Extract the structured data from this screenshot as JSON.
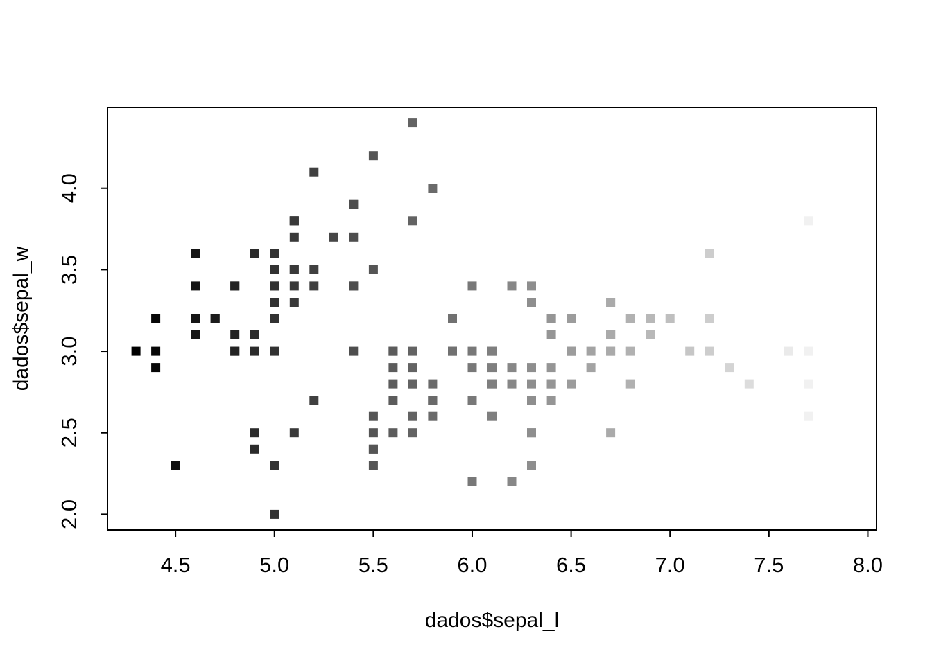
{
  "figure": {
    "background_color": "#ffffff",
    "foreground_color": "#000000"
  },
  "chart_data": {
    "type": "scatter",
    "title": "",
    "xlabel": "dados$sepal_l",
    "ylabel": "dados$sepal_w",
    "point_shape": "filled-square",
    "grid": false,
    "legend": "none",
    "xlim": [
      4.156,
      8.044
    ],
    "ylim": [
      1.904,
      4.496
    ],
    "x_ticks": {
      "values": [
        4.5,
        5.0,
        5.5,
        6.0,
        6.5,
        7.0,
        7.5,
        8.0
      ],
      "labels": [
        "4.5",
        "5.0",
        "5.5",
        "6.0",
        "6.5",
        "7.0",
        "7.5",
        "8.0"
      ]
    },
    "y_ticks": {
      "values": [
        2.0,
        2.5,
        3.0,
        3.5,
        4.0
      ],
      "labels": [
        "2.0",
        "2.5",
        "3.0",
        "3.5",
        "4.0"
      ]
    },
    "color_mapping": {
      "by": "x",
      "domain": [
        4.3,
        7.9
      ],
      "min_color": "#000000",
      "max_color": "#ffffff"
    },
    "x": [
      5.1,
      4.9,
      4.7,
      4.6,
      5.0,
      5.4,
      4.6,
      5.0,
      4.4,
      4.9,
      5.4,
      4.8,
      4.8,
      4.3,
      5.8,
      5.7,
      5.4,
      5.1,
      5.7,
      5.1,
      5.4,
      5.1,
      4.6,
      5.1,
      4.8,
      5.0,
      5.0,
      5.2,
      5.2,
      4.7,
      4.8,
      5.4,
      5.2,
      5.5,
      4.9,
      5.0,
      5.5,
      4.9,
      4.4,
      5.1,
      5.0,
      4.5,
      4.4,
      5.0,
      5.1,
      4.8,
      5.1,
      4.6,
      5.3,
      5.0,
      7.0,
      6.4,
      6.9,
      5.5,
      6.5,
      5.7,
      6.3,
      4.9,
      6.6,
      5.2,
      5.0,
      5.9,
      6.0,
      6.1,
      5.6,
      6.7,
      5.6,
      5.8,
      6.2,
      5.6,
      5.9,
      6.1,
      6.3,
      6.1,
      6.4,
      6.6,
      6.8,
      6.7,
      6.0,
      5.7,
      5.5,
      5.5,
      5.8,
      6.0,
      5.4,
      6.0,
      6.7,
      6.3,
      5.6,
      5.5,
      5.5,
      6.1,
      5.8,
      5.0,
      5.6,
      5.7,
      5.7,
      6.2,
      5.1,
      5.7,
      6.3,
      5.8,
      7.1,
      6.3,
      6.5,
      7.6,
      4.9,
      7.3,
      6.7,
      7.2,
      6.5,
      6.4,
      6.8,
      5.7,
      5.8,
      6.4,
      6.5,
      7.7,
      7.7,
      6.0,
      6.9,
      5.6,
      7.7,
      6.3,
      6.7,
      7.2,
      6.2,
      6.1,
      6.4,
      7.2,
      7.4,
      7.9,
      6.4,
      6.3,
      6.1,
      7.7,
      6.3,
      6.4,
      6.0,
      6.9,
      6.7,
      6.9,
      5.8,
      6.8,
      6.7,
      6.7,
      6.3,
      6.5,
      6.2,
      5.9
    ],
    "y": [
      3.5,
      3.0,
      3.2,
      3.1,
      3.6,
      3.9,
      3.4,
      3.4,
      2.9,
      3.1,
      3.7,
      3.4,
      3.0,
      3.0,
      4.0,
      4.4,
      3.9,
      3.5,
      3.8,
      3.8,
      3.4,
      3.7,
      3.6,
      3.3,
      3.4,
      3.0,
      3.4,
      3.5,
      3.4,
      3.2,
      3.1,
      3.4,
      4.1,
      4.2,
      3.1,
      3.2,
      3.5,
      3.6,
      3.0,
      3.4,
      3.5,
      2.3,
      3.2,
      3.5,
      3.8,
      3.0,
      3.8,
      3.2,
      3.7,
      3.3,
      3.2,
      3.2,
      3.1,
      2.3,
      2.8,
      2.8,
      3.3,
      2.4,
      2.9,
      2.7,
      2.0,
      3.0,
      2.2,
      2.9,
      2.9,
      3.1,
      3.0,
      2.7,
      2.2,
      2.5,
      3.2,
      2.8,
      2.5,
      2.8,
      2.9,
      3.0,
      2.8,
      3.0,
      2.9,
      2.6,
      2.4,
      2.4,
      2.7,
      2.7,
      3.0,
      3.4,
      3.1,
      2.3,
      3.0,
      2.5,
      2.6,
      3.0,
      2.6,
      2.3,
      2.7,
      3.0,
      2.9,
      2.9,
      2.5,
      2.8,
      3.3,
      2.7,
      3.0,
      2.9,
      3.0,
      3.0,
      2.5,
      2.9,
      2.5,
      3.6,
      3.2,
      2.7,
      3.0,
      2.5,
      2.8,
      3.2,
      3.0,
      3.8,
      2.6,
      2.2,
      3.2,
      2.8,
      2.8,
      2.7,
      3.3,
      3.2,
      2.8,
      3.0,
      2.8,
      3.0,
      2.8,
      3.8,
      2.8,
      2.8,
      2.6,
      3.0,
      3.4,
      3.1,
      3.0,
      3.1,
      3.1,
      3.1,
      2.7,
      3.2,
      3.3,
      3.0,
      2.5,
      3.0,
      3.4,
      3.0
    ]
  }
}
